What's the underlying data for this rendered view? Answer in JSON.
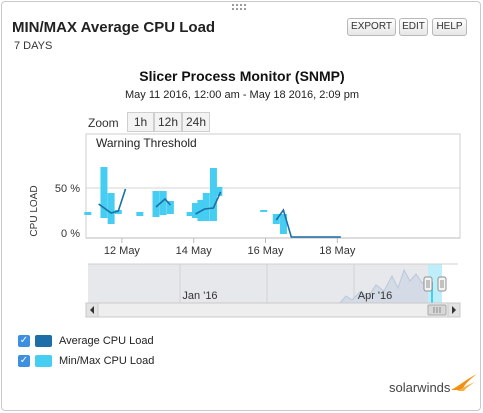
{
  "widget": {
    "title": "MIN/MAX Average CPU Load",
    "period": "7 DAYS",
    "buttons": {
      "export": "EXPORT",
      "edit": "EDIT",
      "help": "HELP"
    }
  },
  "chart": {
    "title": "Slicer Process Monitor (SNMP)",
    "range": "May 11 2016, 12:00 am - May 18 2016, 2:09 pm",
    "zoom": {
      "label": "Zoom",
      "options": [
        "1h",
        "12h",
        "24h"
      ]
    },
    "annotation": "Warning Threshold"
  },
  "navigator": {
    "labels": [
      "Jan '16",
      "Apr '16"
    ]
  },
  "legend": [
    {
      "label": "Average CPU Load",
      "color": "#1b6fa6",
      "checked": true
    },
    {
      "label": "Min/Max CPU Load",
      "color": "#45cdf2",
      "checked": true
    }
  ],
  "brand": {
    "name": "solarwinds",
    "color": "#f29111"
  },
  "chart_data": {
    "type": "area",
    "ylabel": "CPU LOAD",
    "yticks": [
      "0 %",
      "50 %"
    ],
    "ylim": [
      0,
      100
    ],
    "xticks": [
      "12 May",
      "14 May",
      "16 May",
      "18 May"
    ],
    "xlim": [
      11.0,
      18.1
    ],
    "grid": true,
    "series": [
      {
        "name": "Min/Max CPU Load",
        "ranges": [
          [
            11.05,
            23,
            26
          ],
          [
            11.5,
            20,
            71
          ],
          [
            11.7,
            14,
            45
          ],
          [
            11.9,
            24,
            28
          ],
          [
            12.5,
            22,
            26
          ],
          [
            12.95,
            21,
            47
          ],
          [
            13.15,
            23,
            47
          ],
          [
            13.35,
            24,
            37
          ],
          [
            13.9,
            22,
            26
          ],
          [
            14.05,
            20,
            35
          ],
          [
            14.2,
            17,
            38
          ],
          [
            14.35,
            17,
            45
          ],
          [
            14.55,
            17,
            70
          ],
          [
            14.7,
            42,
            51
          ],
          [
            15.95,
            26,
            28
          ],
          [
            16.3,
            14,
            24
          ],
          [
            16.5,
            4,
            24
          ]
        ]
      },
      {
        "name": "Average CPU Load",
        "segments": [
          [
            [
              11.35,
              34
            ],
            [
              11.7,
              25
            ],
            [
              11.9,
              27
            ],
            [
              12.1,
              49
            ]
          ],
          [
            [
              12.95,
              31
            ],
            [
              13.2,
              39
            ],
            [
              13.35,
              33
            ]
          ],
          [
            [
              14.05,
              24
            ],
            [
              14.3,
              29
            ],
            [
              14.55,
              30
            ],
            [
              14.75,
              46
            ]
          ],
          [
            [
              16.3,
              18
            ],
            [
              16.5,
              28
            ],
            [
              16.72,
              1
            ],
            [
              18.1,
              1
            ]
          ]
        ]
      }
    ]
  }
}
